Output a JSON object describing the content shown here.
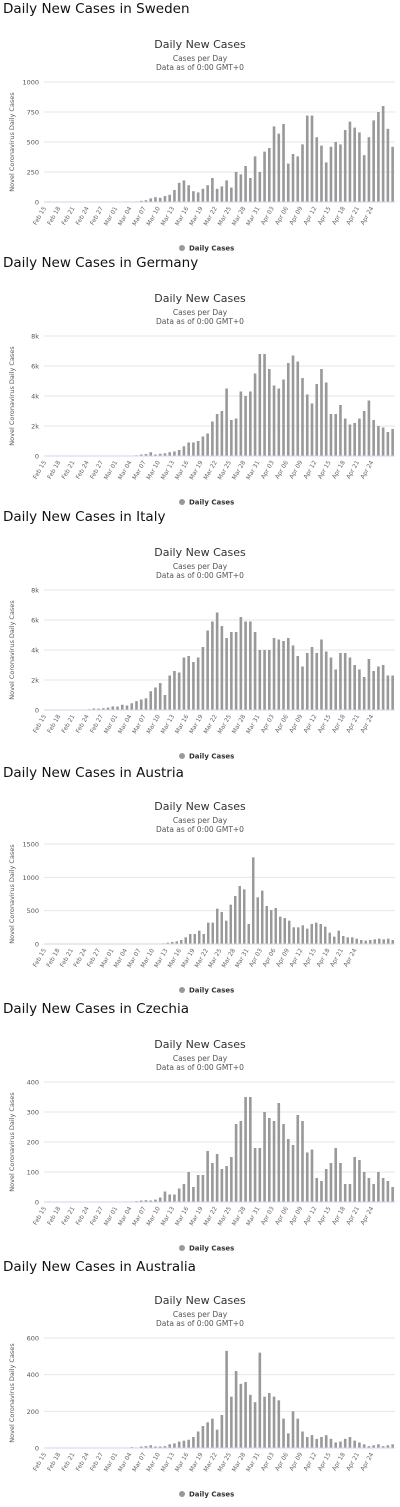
{
  "chart_title": "Daily New Cases",
  "chart_subtitle_1": "Cases per Day",
  "chart_subtitle_2": "Data as of 0:00 GMT+0",
  "y_axis_label": "Novel Coronavirus Daily Cases",
  "legend_label": "Daily Cases",
  "bar_color": "#999999",
  "x_tick_labels": [
    "Feb 15",
    "Feb 18",
    "Feb 21",
    "Feb 24",
    "Feb 27",
    "Mar 01",
    "Mar 04",
    "Mar 07",
    "Mar 10",
    "Mar 13",
    "Mar 16",
    "Mar 19",
    "Mar 22",
    "Mar 25",
    "Mar 28",
    "Mar 31",
    "Apr 03",
    "Apr 06",
    "Apr 09",
    "Apr 12",
    "Apr 15",
    "Apr 18",
    "Apr 21",
    "Apr 24"
  ],
  "chart_data": [
    {
      "type": "bar",
      "heading": "Daily New Cases in Sweden",
      "y_ticks": [
        "0",
        "250",
        "500",
        "750",
        "1000"
      ],
      "ylim": [
        0,
        1000
      ],
      "x_start": "Feb 15",
      "x_end": "Apr 26",
      "series": [
        {
          "name": "Daily Cases",
          "values": [
            0,
            0,
            0,
            0,
            0,
            0,
            0,
            0,
            0,
            0,
            0,
            0,
            0,
            0,
            0,
            0,
            0,
            0,
            0,
            5,
            10,
            15,
            30,
            40,
            35,
            50,
            60,
            100,
            160,
            180,
            140,
            90,
            80,
            110,
            140,
            200,
            110,
            130,
            180,
            120,
            250,
            230,
            300,
            200,
            380,
            250,
            420,
            450,
            630,
            570,
            650,
            320,
            400,
            380,
            480,
            720,
            720,
            540,
            470,
            330,
            460,
            500,
            480,
            600,
            670,
            620,
            580,
            390,
            540,
            680,
            750,
            800,
            610,
            460
          ]
        }
      ]
    },
    {
      "type": "bar",
      "heading": "Daily New Cases in Germany",
      "y_ticks": [
        "0",
        "2k",
        "4k",
        "6k",
        "8k"
      ],
      "ylim": [
        0,
        8000
      ],
      "x_start": "Feb 15",
      "x_end": "Apr 26",
      "series": [
        {
          "name": "Daily Cases",
          "values": [
            0,
            0,
            0,
            0,
            0,
            0,
            0,
            0,
            0,
            0,
            0,
            0,
            0,
            0,
            0,
            0,
            0,
            0,
            0,
            50,
            100,
            130,
            250,
            100,
            150,
            180,
            250,
            300,
            400,
            650,
            900,
            900,
            1000,
            1300,
            1500,
            2300,
            2800,
            3000,
            4500,
            2400,
            2500,
            4300,
            4000,
            4300,
            5500,
            6800,
            6800,
            5800,
            4700,
            4500,
            5100,
            6200,
            6700,
            6300,
            5200,
            4100,
            3500,
            4800,
            5800,
            4900,
            2800,
            2800,
            3400,
            2500,
            2100,
            2200,
            2500,
            3000,
            3700,
            2400,
            2000,
            1900,
            1600,
            1800
          ]
        }
      ]
    },
    {
      "type": "bar",
      "heading": "Daily New Cases in Italy",
      "y_ticks": [
        "0",
        "2k",
        "4k",
        "6k",
        "8k"
      ],
      "ylim": [
        0,
        8000
      ],
      "x_start": "Feb 15",
      "x_end": "Apr 26",
      "series": [
        {
          "name": "Daily Cases",
          "values": [
            0,
            0,
            0,
            0,
            0,
            0,
            0,
            0,
            10,
            50,
            100,
            90,
            120,
            160,
            240,
            230,
            350,
            300,
            450,
            590,
            700,
            780,
            1250,
            1500,
            1800,
            1000,
            2300,
            2600,
            2500,
            3500,
            3600,
            3200,
            3500,
            4200,
            5300,
            5900,
            6500,
            5600,
            4800,
            5200,
            5200,
            6200,
            5900,
            5900,
            5200,
            4000,
            4000,
            4000,
            4800,
            4700,
            4600,
            4800,
            4300,
            3600,
            2900,
            3800,
            4200,
            3800,
            4700,
            3900,
            3500,
            2700,
            3800,
            3800,
            3500,
            3000,
            2700,
            2200,
            3400,
            2600,
            2900,
            3000,
            2300,
            2300
          ]
        }
      ]
    },
    {
      "type": "bar",
      "heading": "Daily New Cases in Austria",
      "y_ticks": [
        "0",
        "500",
        "1000",
        "1500"
      ],
      "ylim": [
        0,
        1500
      ],
      "x_start": "Feb 15",
      "x_end": "Apr 26",
      "series": [
        {
          "name": "Daily Cases",
          "values": [
            0,
            0,
            0,
            0,
            0,
            0,
            0,
            0,
            0,
            0,
            0,
            0,
            0,
            0,
            0,
            0,
            0,
            0,
            0,
            0,
            0,
            0,
            0,
            0,
            2,
            6,
            10,
            20,
            30,
            40,
            60,
            100,
            150,
            150,
            200,
            150,
            320,
            320,
            530,
            480,
            350,
            590,
            720,
            870,
            820,
            300,
            1300,
            700,
            800,
            570,
            510,
            540,
            410,
            390,
            350,
            250,
            250,
            280,
            230,
            300,
            320,
            300,
            260,
            170,
            110,
            200,
            120,
            100,
            100,
            80,
            60,
            50,
            60,
            70,
            80,
            70,
            80,
            60
          ]
        }
      ]
    },
    {
      "type": "bar",
      "heading": "Daily New Cases in Czechia",
      "y_ticks": [
        "0",
        "100",
        "200",
        "300",
        "400"
      ],
      "ylim": [
        0,
        400
      ],
      "x_start": "Feb 15",
      "x_end": "Apr 26",
      "series": [
        {
          "name": "Daily Cases",
          "values": [
            0,
            0,
            0,
            0,
            0,
            0,
            0,
            0,
            0,
            0,
            0,
            0,
            0,
            0,
            0,
            0,
            0,
            0,
            2,
            3,
            5,
            6,
            5,
            8,
            15,
            35,
            25,
            25,
            45,
            60,
            100,
            50,
            90,
            90,
            170,
            130,
            160,
            110,
            120,
            150,
            260,
            270,
            350,
            350,
            180,
            180,
            300,
            280,
            270,
            330,
            260,
            210,
            190,
            290,
            270,
            165,
            175,
            80,
            70,
            110,
            130,
            180,
            130,
            60,
            60,
            150,
            140,
            100,
            80,
            60,
            100,
            80,
            70,
            50
          ]
        }
      ]
    },
    {
      "type": "bar",
      "heading": "Daily New Cases in Australia",
      "y_ticks": [
        "0",
        "200",
        "400",
        "600"
      ],
      "ylim": [
        0,
        600
      ],
      "x_start": "Feb 15",
      "x_end": "Apr 26",
      "series": [
        {
          "name": "Daily Cases",
          "values": [
            0,
            0,
            0,
            0,
            0,
            0,
            0,
            0,
            0,
            0,
            0,
            0,
            0,
            0,
            0,
            0,
            0,
            0,
            5,
            3,
            8,
            10,
            15,
            8,
            8,
            10,
            20,
            25,
            35,
            40,
            45,
            60,
            90,
            120,
            140,
            160,
            100,
            180,
            530,
            280,
            420,
            350,
            360,
            290,
            250,
            520,
            280,
            300,
            280,
            260,
            160,
            80,
            200,
            160,
            90,
            60,
            70,
            50,
            60,
            70,
            50,
            30,
            35,
            50,
            60,
            40,
            30,
            20,
            10,
            15,
            20,
            10,
            15,
            20
          ]
        }
      ]
    }
  ]
}
